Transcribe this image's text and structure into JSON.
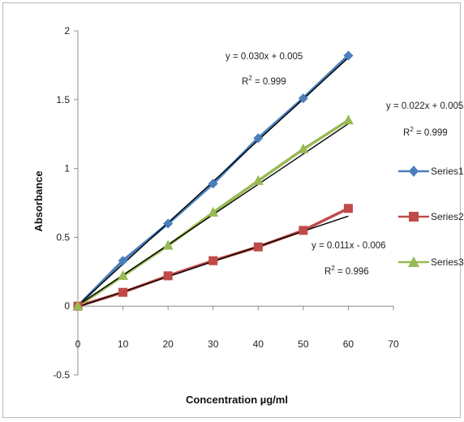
{
  "chart_data": {
    "type": "scatter",
    "title": "",
    "xlabel": "Concentration µg/ml",
    "ylabel": "Absorbance",
    "xlim": [
      0,
      70
    ],
    "ylim": [
      -0.5,
      2
    ],
    "x_ticks": [
      "0",
      "10",
      "20",
      "30",
      "40",
      "50",
      "60",
      "70"
    ],
    "y_ticks": [
      "-0.5",
      "0",
      "0.5",
      "1",
      "1.5",
      "2"
    ],
    "x": [
      0,
      10,
      20,
      30,
      40,
      50,
      60
    ],
    "grid": false,
    "legend_position": "right",
    "series": [
      {
        "name": "Series1",
        "color": "#4a7ebb",
        "marker": "diamond",
        "values": [
          0,
          0.33,
          0.6,
          0.89,
          1.22,
          1.51,
          1.82
        ],
        "trendline": {
          "slope": 0.03,
          "intercept": 0.005
        },
        "equation": "y = 0.030x + 0.005",
        "r2_prefix": "R",
        "r2_sup": "2",
        "r2_value": " = 0.999"
      },
      {
        "name": "Series2",
        "color": "#be4b48",
        "marker": "square",
        "values": [
          0,
          0.1,
          0.22,
          0.33,
          0.43,
          0.55,
          0.71
        ],
        "trendline": {
          "slope": 0.011,
          "intercept": -0.006
        },
        "equation": "y = 0.011x - 0.006",
        "r2_prefix": "R",
        "r2_sup": "2",
        "r2_value": " = 0.996"
      },
      {
        "name": "Series3",
        "color": "#98b954",
        "marker": "triangle",
        "values": [
          0,
          0.22,
          0.44,
          0.68,
          0.91,
          1.14,
          1.35
        ],
        "trendline": {
          "slope": 0.022,
          "intercept": 0.005
        },
        "equation": "y = 0.022x + 0.005",
        "r2_prefix": "R",
        "r2_sup": "2",
        "r2_value": " = 0.999"
      }
    ]
  }
}
